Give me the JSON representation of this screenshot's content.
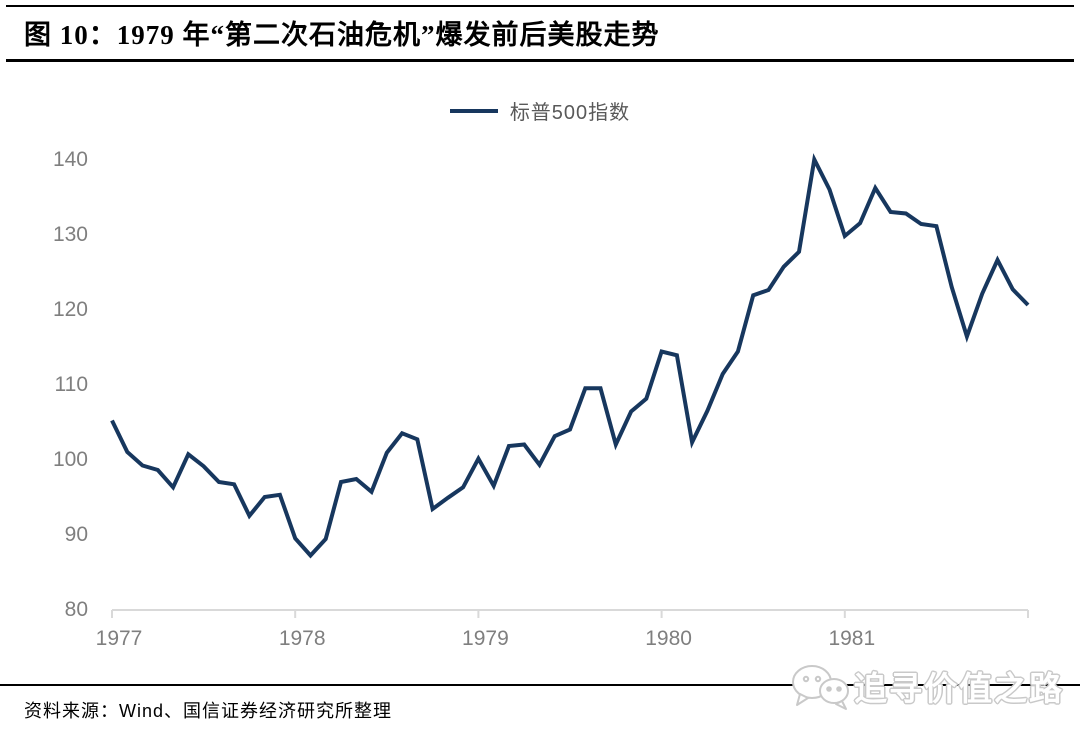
{
  "header": {
    "title": "图 10：1979 年“第二次石油危机”爆发前后美股走势"
  },
  "legend": {
    "label": "标普500指数"
  },
  "colors": {
    "line": "#17375E",
    "axis_line": "#D9D9D9",
    "tick_label": "#7F7F7F",
    "legend_text": "#595959",
    "rule": "#000000",
    "watermark": "#C9C9C9"
  },
  "chart_data": {
    "type": "line",
    "title": "1979 年“第二次石油危机”爆发前后美股走势",
    "x_frequency": "monthly",
    "x_start": "1977-01",
    "x_end": "1982-01",
    "series": [
      {
        "name": "标普500指数",
        "values": [
          105.0,
          100.8,
          99.0,
          98.4,
          96.1,
          100.5,
          98.9,
          96.8,
          96.5,
          92.3,
          94.8,
          95.1,
          89.3,
          87.0,
          89.2,
          96.8,
          97.2,
          95.5,
          100.7,
          103.3,
          102.5,
          93.2,
          94.7,
          96.1,
          99.9,
          96.3,
          101.6,
          101.8,
          99.1,
          102.9,
          103.8,
          109.3,
          109.3,
          101.8,
          106.2,
          107.9,
          114.2,
          113.7,
          102.1,
          106.3,
          111.2,
          114.2,
          121.7,
          122.4,
          125.5,
          127.5,
          139.8,
          135.8,
          129.6,
          131.3,
          136.0,
          132.8,
          132.6,
          131.2,
          130.9,
          122.8,
          116.2,
          121.9,
          126.4,
          122.5,
          120.4
        ]
      }
    ],
    "xticks": [
      {
        "label": "1977",
        "month_index": 0
      },
      {
        "label": "1978",
        "month_index": 12
      },
      {
        "label": "1979",
        "month_index": 24
      },
      {
        "label": "1980",
        "month_index": 36
      },
      {
        "label": "1981",
        "month_index": 48
      }
    ],
    "ytick_values": [
      80,
      90,
      100,
      110,
      120,
      130,
      140
    ],
    "ylim": [
      80,
      140
    ],
    "grid": false,
    "legend_position": "top-center"
  },
  "footer": {
    "source": "资料来源：Wind、国信证券经济研究所整理"
  },
  "watermark": {
    "text": "追寻价值之路",
    "icon": "wechat-icon"
  }
}
